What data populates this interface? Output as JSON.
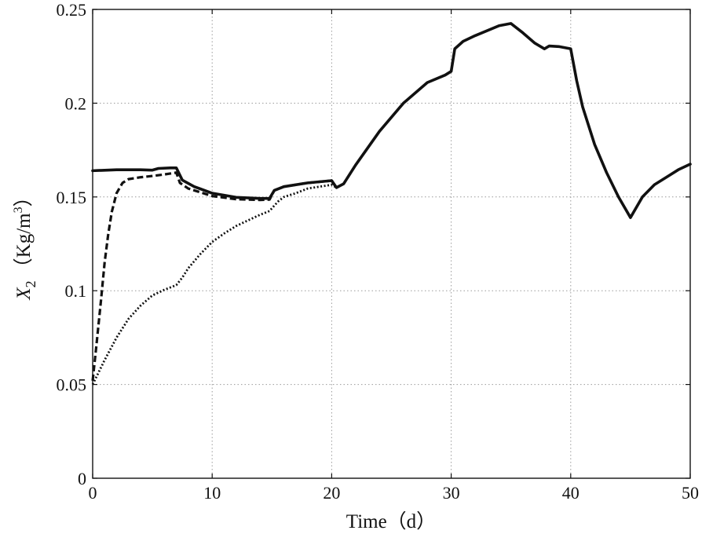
{
  "chart_data": {
    "type": "line",
    "xlabel": "Time（d）",
    "ylabel": {
      "symbol": "X",
      "subscript": "2",
      "unit_open": "（Kg/m",
      "superscript": "3",
      "unit_close": "）"
    },
    "xlim": [
      0,
      50
    ],
    "ylim": [
      0,
      0.25
    ],
    "x_ticks": [
      "0",
      "10",
      "20",
      "30",
      "40",
      "50"
    ],
    "y_ticks": [
      "0",
      "0.05",
      "0.1",
      "0.15",
      "0.2",
      "0.25"
    ],
    "grid": true,
    "legend": "none",
    "series": [
      {
        "style": "solid",
        "color": "#111111",
        "points": [
          [
            0,
            0.164
          ],
          [
            2,
            0.1645
          ],
          [
            4,
            0.1645
          ],
          [
            5,
            0.1643
          ],
          [
            5.5,
            0.1652
          ],
          [
            6.5,
            0.1655
          ],
          [
            7.0,
            0.1655
          ],
          [
            7.5,
            0.159
          ],
          [
            8.5,
            0.1555
          ],
          [
            10,
            0.152
          ],
          [
            12,
            0.1498
          ],
          [
            14,
            0.1492
          ],
          [
            14.8,
            0.1492
          ],
          [
            15.2,
            0.1535
          ],
          [
            16,
            0.1555
          ],
          [
            18,
            0.1575
          ],
          [
            20,
            0.1587
          ],
          [
            20.4,
            0.155
          ],
          [
            21,
            0.157
          ],
          [
            22,
            0.167
          ],
          [
            24,
            0.185
          ],
          [
            26,
            0.2
          ],
          [
            28,
            0.211
          ],
          [
            29.5,
            0.215
          ],
          [
            30,
            0.217
          ],
          [
            30.3,
            0.229
          ],
          [
            31,
            0.233
          ],
          [
            32,
            0.236
          ],
          [
            34,
            0.2413
          ],
          [
            35,
            0.2425
          ],
          [
            36,
            0.2375
          ],
          [
            37,
            0.232
          ],
          [
            37.8,
            0.229
          ],
          [
            38.2,
            0.2305
          ],
          [
            39,
            0.2302
          ],
          [
            40,
            0.229
          ],
          [
            40.5,
            0.212
          ],
          [
            41,
            0.198
          ],
          [
            42,
            0.178
          ],
          [
            43,
            0.163
          ],
          [
            44,
            0.15
          ],
          [
            45,
            0.139
          ],
          [
            46,
            0.15
          ],
          [
            47,
            0.1565
          ],
          [
            48,
            0.1605
          ],
          [
            49,
            0.1645
          ],
          [
            50,
            0.1675
          ]
        ]
      },
      {
        "style": "dashed",
        "color": "#111111",
        "points": [
          [
            0,
            0.052
          ],
          [
            0.3,
            0.07
          ],
          [
            0.7,
            0.095
          ],
          [
            1.0,
            0.115
          ],
          [
            1.3,
            0.13
          ],
          [
            1.6,
            0.142
          ],
          [
            2.0,
            0.152
          ],
          [
            2.5,
            0.1575
          ],
          [
            3,
            0.1595
          ],
          [
            4,
            0.1605
          ],
          [
            5,
            0.1612
          ],
          [
            6,
            0.162
          ],
          [
            7,
            0.163
          ],
          [
            7.3,
            0.1575
          ],
          [
            8,
            0.1545
          ],
          [
            10,
            0.1505
          ],
          [
            12,
            0.1488
          ],
          [
            14,
            0.1484
          ],
          [
            14.8,
            0.1486
          ],
          [
            15.2,
            0.1535
          ],
          [
            16,
            0.1555
          ],
          [
            18,
            0.1575
          ],
          [
            20,
            0.1587
          ],
          [
            20.4,
            0.155
          ],
          [
            21,
            0.157
          ],
          [
            22,
            0.167
          ],
          [
            24,
            0.185
          ]
        ]
      },
      {
        "style": "dotted",
        "color": "#111111",
        "points": [
          [
            0,
            0.05
          ],
          [
            1,
            0.063
          ],
          [
            2,
            0.075
          ],
          [
            3,
            0.085
          ],
          [
            4,
            0.092
          ],
          [
            5,
            0.0975
          ],
          [
            6,
            0.1005
          ],
          [
            7,
            0.103
          ],
          [
            7.5,
            0.107
          ],
          [
            8,
            0.112
          ],
          [
            9,
            0.1195
          ],
          [
            10,
            0.126
          ],
          [
            11,
            0.1305
          ],
          [
            12,
            0.1345
          ],
          [
            13,
            0.1375
          ],
          [
            14,
            0.1405
          ],
          [
            14.8,
            0.1425
          ],
          [
            15.5,
            0.1475
          ],
          [
            16,
            0.15
          ],
          [
            17,
            0.152
          ],
          [
            18,
            0.1545
          ],
          [
            19,
            0.1555
          ],
          [
            20,
            0.1565
          ],
          [
            20.4,
            0.155
          ],
          [
            21,
            0.157
          ],
          [
            22,
            0.167
          ],
          [
            24,
            0.185
          ]
        ]
      }
    ]
  }
}
